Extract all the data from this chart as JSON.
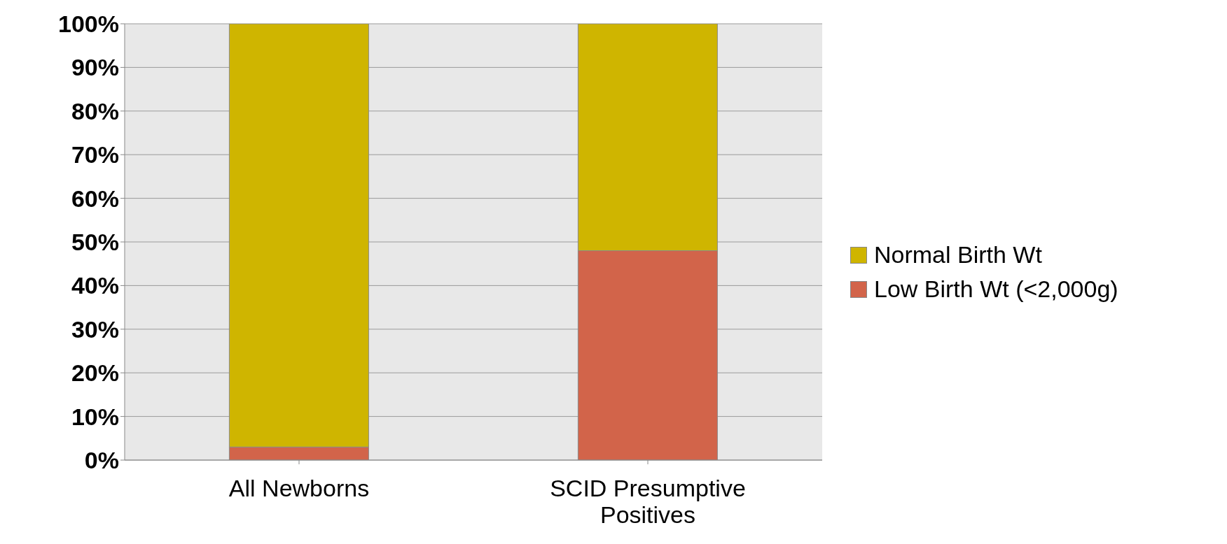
{
  "chart_data": {
    "type": "bar",
    "stacked": true,
    "categories": [
      "All Newborns",
      "SCID Presumptive Positives"
    ],
    "series": [
      {
        "name": "Low Birth Wt (<2,000g)",
        "color": "#d2644a",
        "values": [
          3,
          48
        ]
      },
      {
        "name": "Normal Birth Wt",
        "color": "#cfb500",
        "values": [
          97,
          52
        ]
      }
    ],
    "ylim": [
      0,
      100
    ],
    "yticks": [
      {
        "value": 0,
        "label": "0%"
      },
      {
        "value": 10,
        "label": "10%"
      },
      {
        "value": 20,
        "label": "20%"
      },
      {
        "value": 30,
        "label": "30%"
      },
      {
        "value": 40,
        "label": "40%"
      },
      {
        "value": 50,
        "label": "50%"
      },
      {
        "value": 60,
        "label": "60%"
      },
      {
        "value": 70,
        "label": "70%"
      },
      {
        "value": 80,
        "label": "80%"
      },
      {
        "value": 90,
        "label": "90%"
      },
      {
        "value": 100,
        "label": "100%"
      }
    ],
    "grid": "y",
    "legend": "right"
  }
}
